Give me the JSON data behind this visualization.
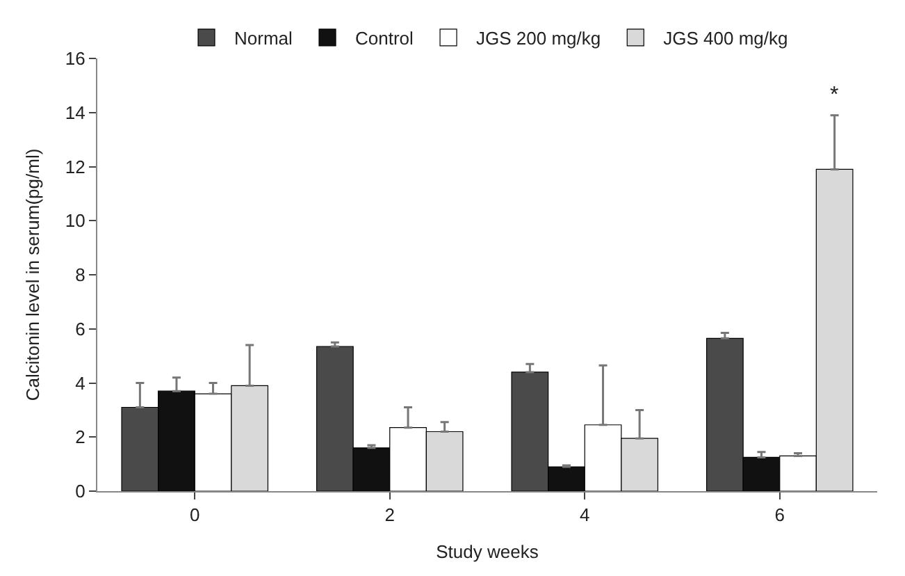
{
  "chart_data": {
    "type": "bar",
    "xlabel": "Study weeks",
    "ylabel": "Calcitonin level in serum(pg/ml)",
    "categories": [
      "0",
      "2",
      "4",
      "6"
    ],
    "series": [
      {
        "name": "Normal",
        "color": "#4a4a4a",
        "values": [
          3.1,
          5.35,
          4.4,
          5.65
        ],
        "errors": [
          [
            3.1,
            4.0
          ],
          [
            5.35,
            5.5
          ],
          [
            4.4,
            4.7
          ],
          [
            5.65,
            5.85
          ]
        ]
      },
      {
        "name": "Control",
        "color": "#111111",
        "values": [
          3.7,
          1.6,
          0.9,
          1.25
        ],
        "errors": [
          [
            3.7,
            4.2
          ],
          [
            1.6,
            1.7
          ],
          [
            0.9,
            0.95
          ],
          [
            1.25,
            1.45
          ]
        ]
      },
      {
        "name": "JGS 200 mg/kg",
        "color": "#ffffff",
        "values": [
          3.6,
          2.35,
          2.45,
          1.3
        ],
        "errors": [
          [
            3.6,
            4.0
          ],
          [
            2.35,
            3.1
          ],
          [
            2.45,
            4.65
          ],
          [
            1.3,
            1.4
          ]
        ]
      },
      {
        "name": "JGS 400 mg/kg",
        "color": "#d9d9d9",
        "values": [
          3.9,
          2.2,
          1.95,
          11.9
        ],
        "errors": [
          [
            3.9,
            5.4
          ],
          [
            2.2,
            2.55
          ],
          [
            1.95,
            3.0
          ],
          [
            11.9,
            13.9
          ]
        ]
      }
    ],
    "annotations": [
      "*"
    ],
    "ylim": [
      0,
      16
    ],
    "yticks": [
      0,
      2,
      4,
      6,
      8,
      10,
      12,
      14,
      16
    ],
    "legend": "top"
  }
}
